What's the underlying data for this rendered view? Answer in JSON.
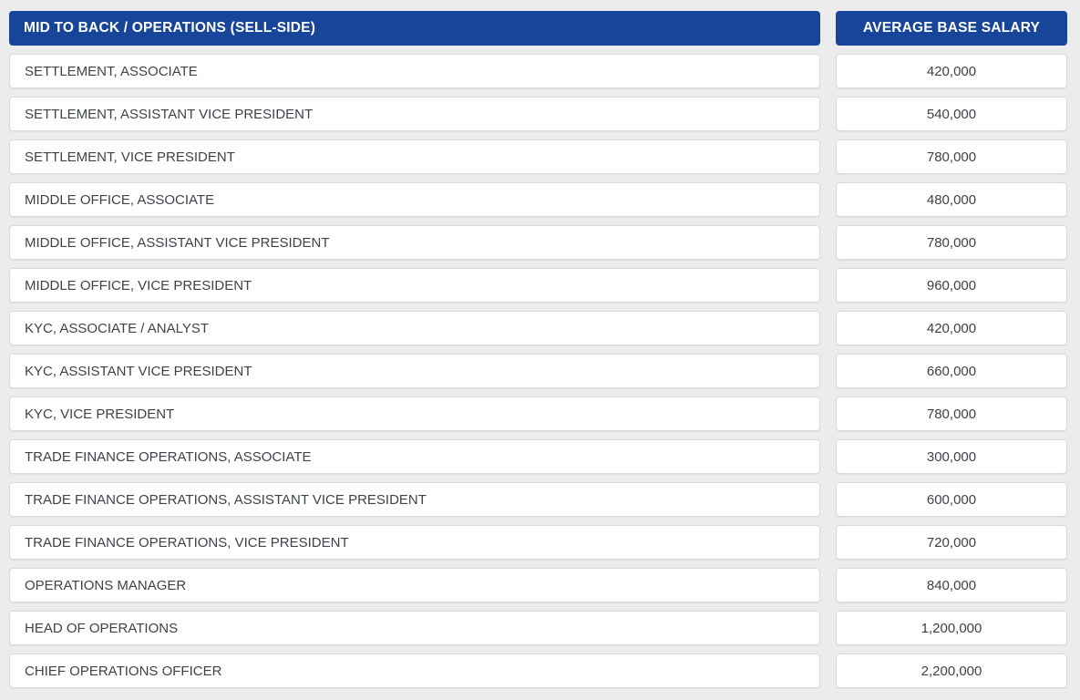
{
  "colors": {
    "page_bg": "#ECECEC",
    "header_bg": "#17459A",
    "header_text": "#FFFFFF",
    "cell_bg": "#FFFFFF",
    "cell_border": "#D9DADB",
    "cell_text": "#3D4349"
  },
  "table": {
    "header": {
      "title_column": "MID TO BACK / OPERATIONS (SELL-SIDE)",
      "salary_column": "AVERAGE BASE SALARY"
    },
    "rows": [
      {
        "role": "SETTLEMENT, ASSOCIATE",
        "salary": "420,000"
      },
      {
        "role": "SETTLEMENT, ASSISTANT VICE PRESIDENT",
        "salary": "540,000"
      },
      {
        "role": "SETTLEMENT, VICE PRESIDENT",
        "salary": "780,000"
      },
      {
        "role": "MIDDLE OFFICE, ASSOCIATE",
        "salary": "480,000"
      },
      {
        "role": "MIDDLE OFFICE, ASSISTANT VICE PRESIDENT",
        "salary": "780,000"
      },
      {
        "role": "MIDDLE OFFICE, VICE PRESIDENT",
        "salary": "960,000"
      },
      {
        "role": "KYC, ASSOCIATE / ANALYST",
        "salary": "420,000"
      },
      {
        "role": "KYC, ASSISTANT VICE PRESIDENT",
        "salary": "660,000"
      },
      {
        "role": "KYC, VICE PRESIDENT",
        "salary": "780,000"
      },
      {
        "role": "TRADE FINANCE OPERATIONS, ASSOCIATE",
        "salary": "300,000"
      },
      {
        "role": "TRADE FINANCE OPERATIONS, ASSISTANT VICE PRESIDENT",
        "salary": "600,000"
      },
      {
        "role": "TRADE FINANCE OPERATIONS, VICE PRESIDENT",
        "salary": "720,000"
      },
      {
        "role": "OPERATIONS MANAGER",
        "salary": "840,000"
      },
      {
        "role": "HEAD OF OPERATIONS",
        "salary": "1,200,000"
      },
      {
        "role": "CHIEF OPERATIONS OFFICER",
        "salary": "2,200,000"
      }
    ]
  },
  "chart_data": {
    "type": "table",
    "title": "MID TO BACK / OPERATIONS (SELL-SIDE)",
    "columns": [
      "MID TO BACK / OPERATIONS (SELL-SIDE)",
      "AVERAGE BASE SALARY"
    ],
    "rows": [
      [
        "SETTLEMENT, ASSOCIATE",
        420000
      ],
      [
        "SETTLEMENT, ASSISTANT VICE PRESIDENT",
        540000
      ],
      [
        "SETTLEMENT, VICE PRESIDENT",
        780000
      ],
      [
        "MIDDLE OFFICE, ASSOCIATE",
        480000
      ],
      [
        "MIDDLE OFFICE, ASSISTANT VICE PRESIDENT",
        780000
      ],
      [
        "MIDDLE OFFICE, VICE PRESIDENT",
        960000
      ],
      [
        "KYC, ASSOCIATE / ANALYST",
        420000
      ],
      [
        "KYC, ASSISTANT VICE PRESIDENT",
        660000
      ],
      [
        "KYC, VICE PRESIDENT",
        780000
      ],
      [
        "TRADE FINANCE OPERATIONS, ASSOCIATE",
        300000
      ],
      [
        "TRADE FINANCE OPERATIONS, ASSISTANT VICE PRESIDENT",
        600000
      ],
      [
        "TRADE FINANCE OPERATIONS, VICE PRESIDENT",
        720000
      ],
      [
        "OPERATIONS MANAGER",
        840000
      ],
      [
        "HEAD OF OPERATIONS",
        1200000
      ],
      [
        "CHIEF OPERATIONS OFFICER",
        2200000
      ]
    ]
  }
}
